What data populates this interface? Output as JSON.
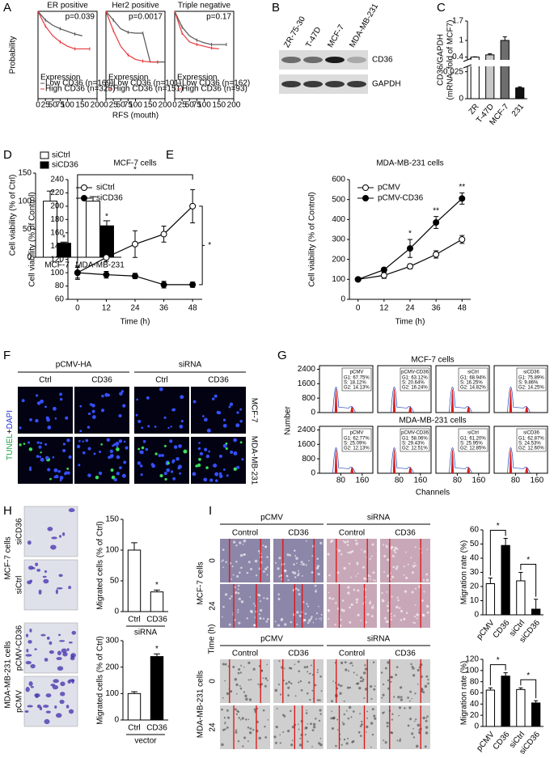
{
  "panel_labels": [
    "A",
    "B",
    "C",
    "D",
    "E",
    "F",
    "G",
    "H",
    "I"
  ],
  "chart_data": [
    {
      "type": "line",
      "title": "ER positive",
      "y_label": "Probability",
      "annotation": "p=0.039",
      "legend_title": "Expression",
      "x": [
        0,
        25,
        50,
        75,
        100,
        125,
        150,
        175,
        200
      ],
      "xlim": [
        0,
        200
      ],
      "xticks": [
        0,
        25,
        50,
        75,
        100,
        150,
        200
      ],
      "ylim": [
        0,
        1
      ],
      "series": [
        {
          "name": "Low CD36 (n=169)",
          "color": "#555555",
          "values": [
            1,
            0.9,
            0.84,
            0.8,
            0.77,
            0.74,
            0.72,
            null,
            null
          ]
        },
        {
          "name": "High CD36 (n=325)",
          "color": "#e8383d",
          "values": [
            1,
            0.83,
            0.72,
            0.65,
            0.6,
            0.57,
            0.57,
            0.57,
            null
          ]
        }
      ]
    },
    {
      "type": "line",
      "title": "Her2 positive",
      "x_label": "RFS (mouth)",
      "annotation": "p=0.0017",
      "legend_title": "Expression",
      "x": [
        0,
        25,
        50,
        75,
        100,
        125,
        150,
        175,
        200
      ],
      "xlim": [
        0,
        200
      ],
      "xticks": [
        0,
        25,
        50,
        75,
        100,
        150,
        200
      ],
      "ylim": [
        0,
        1
      ],
      "series": [
        {
          "name": "Low CD36 (n=101)",
          "color": "#555555",
          "values": [
            1,
            0.9,
            0.8,
            0.76,
            0.75,
            0.75,
            0.42,
            0.42,
            0.42
          ]
        },
        {
          "name": "High CD36 (n=151)",
          "color": "#e8383d",
          "values": [
            1,
            0.78,
            0.6,
            0.5,
            0.45,
            0.43,
            0.42,
            0.42,
            null
          ]
        }
      ]
    },
    {
      "type": "line",
      "title": "Triple negative",
      "annotation": "p=0.17",
      "legend_title": "Expression",
      "x": [
        0,
        25,
        50,
        75,
        100,
        125,
        150,
        175,
        200
      ],
      "xlim": [
        0,
        200
      ],
      "xticks": [
        0,
        25,
        50,
        75,
        100,
        150,
        200
      ],
      "ylim": [
        0,
        1
      ],
      "series": [
        {
          "name": "Low CD36 (n=162)",
          "color": "#555555",
          "values": [
            1,
            0.82,
            0.72,
            0.67,
            0.64,
            0.62,
            0.62,
            0.62,
            null
          ]
        },
        {
          "name": "High CD36 (n=93)",
          "color": "#e8383d",
          "values": [
            1,
            0.75,
            0.65,
            0.62,
            0.6,
            0.58,
            0.57,
            null,
            null
          ]
        }
      ]
    },
    {
      "type": "bar",
      "y_label": [
        "CD36/GAPDH",
        "(mRNA, fold of MCF7)"
      ],
      "categories": [
        "ZR",
        "T-47D",
        "MCF-7",
        "231"
      ],
      "values": [
        0.4,
        0.48,
        1.0,
        0.01
      ],
      "errors": [
        0.01,
        0.04,
        0.13,
        0.001
      ],
      "colors": [
        "#ffffff",
        "#c8c8c8",
        "#6e6e6e",
        "#111111"
      ],
      "ylim": [
        0,
        1.7
      ],
      "yticks": [
        0,
        0.025,
        0.4,
        1,
        1.7
      ],
      "y_break": [
        0.03,
        0.3
      ]
    },
    {
      "type": "bar",
      "y_label": "Cell viability (% of Ctrl)",
      "categories": [
        "MCF-7",
        "MDA-MB-231"
      ],
      "series": [
        {
          "name": "siCtrl",
          "color": "#ffffff",
          "values": [
            100,
            100
          ],
          "errors": [
            18,
            8
          ]
        },
        {
          "name": "siCD36",
          "color": "#000000",
          "values": [
            25,
            56
          ],
          "errors": [
            2,
            9
          ],
          "significance": [
            "*",
            "*"
          ]
        }
      ],
      "ylim": [
        0,
        150
      ],
      "yticks": [
        0,
        50,
        100,
        150
      ]
    },
    {
      "type": "line",
      "title": "MCF-7 cells",
      "x_label": "Time (h)",
      "y_label": "Cell viability (% of Control)",
      "x": [
        0,
        12,
        24,
        36,
        48
      ],
      "xlim": [
        -4,
        52
      ],
      "xticks": [
        0,
        12,
        24,
        36,
        48
      ],
      "ylim": [
        60,
        240
      ],
      "yticks": [
        60,
        80,
        100,
        120,
        140,
        160,
        180,
        200,
        220,
        240
      ],
      "series": [
        {
          "name": "siCtrl",
          "color": "#000000",
          "marker_fill": "#ffffff",
          "values": [
            100,
            123,
            143,
            158,
            200
          ],
          "errors": [
            8,
            6,
            20,
            12,
            25
          ]
        },
        {
          "name": "siCD36",
          "color": "#000000",
          "marker_fill": "#000000",
          "values": [
            100,
            97,
            95,
            82,
            82
          ],
          "errors": [
            10,
            5,
            4,
            5,
            4
          ]
        }
      ],
      "brackets": [
        "*",
        "*"
      ]
    },
    {
      "type": "line",
      "title": "MDA-MB-231 cells",
      "x_label": "Time (h)",
      "y_label": "Cell viability (% of Control)",
      "x": [
        0,
        12,
        24,
        36,
        48
      ],
      "xlim": [
        -4,
        52
      ],
      "xticks": [
        0,
        12,
        24,
        36,
        48
      ],
      "ylim": [
        0,
        600
      ],
      "yticks": [
        0,
        100,
        200,
        300,
        400,
        500,
        600
      ],
      "series": [
        {
          "name": "pCMV",
          "color": "#000000",
          "marker_fill": "#ffffff",
          "values": [
            100,
            120,
            165,
            225,
            300
          ],
          "errors": [
            5,
            15,
            12,
            18,
            20
          ]
        },
        {
          "name": "pCMV-CD36",
          "color": "#000000",
          "marker_fill": "#000000",
          "values": [
            100,
            148,
            255,
            385,
            505
          ],
          "errors": [
            5,
            10,
            45,
            30,
            28
          ],
          "significance": [
            null,
            null,
            "*",
            "**",
            "**"
          ]
        }
      ]
    },
    {
      "type": "bar",
      "y_label": "Migrated cells (% of Ctrl)",
      "x_label": "siRNA",
      "categories": [
        "Ctrl",
        "CD36"
      ],
      "values": [
        100,
        32
      ],
      "errors": [
        12,
        3
      ],
      "colors": [
        "#ffffff",
        "#ffffff"
      ],
      "significance": [
        null,
        "*"
      ],
      "ylim": [
        0,
        150
      ],
      "yticks": [
        0,
        50,
        100,
        150
      ]
    },
    {
      "type": "bar",
      "y_label": "Migrated cells (% of Ctrl)",
      "x_label": "vector",
      "categories": [
        "Ctrl",
        "CD36"
      ],
      "values": [
        100,
        240
      ],
      "errors": [
        7,
        10
      ],
      "colors": [
        "#ffffff",
        "#000000"
      ],
      "significance": [
        null,
        "*"
      ],
      "ylim": [
        0,
        300
      ],
      "yticks": [
        0,
        100,
        200,
        300
      ]
    },
    {
      "type": "bar",
      "y_label": "Migration rate (%)",
      "categories": [
        "pCMV",
        "CD36",
        "siCtrl",
        "siCD36"
      ],
      "values": [
        22,
        49,
        24,
        4
      ],
      "errors": [
        4,
        5,
        6,
        7
      ],
      "colors": [
        "#ffffff",
        "#000000",
        "#ffffff",
        "#000000"
      ],
      "comparisons": [
        "*",
        "*"
      ],
      "ylim": [
        0,
        60
      ],
      "yticks": [
        0,
        10,
        20,
        30,
        40,
        50,
        60
      ]
    },
    {
      "type": "bar",
      "y_label": "Migration rate (%)",
      "categories": [
        "pCMV",
        "CD36",
        "siCtrl",
        "siCD36"
      ],
      "values": [
        65,
        90,
        66,
        42
      ],
      "errors": [
        4,
        6,
        3,
        4
      ],
      "colors": [
        "#ffffff",
        "#000000",
        "#ffffff",
        "#000000"
      ],
      "comparisons": [
        "*",
        "*"
      ],
      "ylim": [
        0,
        120
      ],
      "yticks": [
        0,
        20,
        40,
        60,
        80,
        100,
        120
      ]
    }
  ],
  "western": {
    "lanes": [
      "ZR-75-30",
      "T-47D",
      "MCF-7",
      "MDA-MB-231"
    ],
    "bands": [
      "CD36",
      "GAPDH"
    ]
  },
  "tunel": {
    "stain": [
      "TUNEL",
      "+",
      "DAPI"
    ],
    "groups": [
      "pCMV-HA",
      "siRNA"
    ],
    "columns": [
      "Ctrl",
      "CD36",
      "Ctrl",
      "CD36"
    ],
    "rows": [
      "MCF-7",
      "MDA-MB-231"
    ]
  },
  "cell_cycle": {
    "y_label": "Number",
    "x_label": "Channels",
    "ylim": [
      0,
      2600
    ],
    "yticks": [
      0,
      800,
      1600,
      2400
    ],
    "xlim": [
      0,
      200
    ],
    "xticks": [
      80,
      160
    ],
    "rows": [
      {
        "title": "MCF-7 cells",
        "panels": [
          {
            "name": "pCMV",
            "lines": [
              "G1: 67.75%",
              "S: 18.12%",
              "G2: 14.13%"
            ]
          },
          {
            "name": "pCMV-CD36",
            "lines": [
              "G1: 63.12%",
              "S: 20.64%",
              "G2: 16.24%"
            ]
          },
          {
            "name": "siCtrl",
            "lines": [
              "G1: 68.94%",
              "S: 16.25%",
              "G2: 14.82%"
            ]
          },
          {
            "name": "siCD36",
            "lines": [
              "G1: 75.89%",
              "S: 9.86%",
              "G2: 14.25%"
            ]
          }
        ]
      },
      {
        "title": "MDA-MB-231 cells",
        "panels": [
          {
            "name": "pCMV",
            "lines": [
              "G1: 62.77%",
              "S: 25.09%",
              "G2: 12.13%"
            ]
          },
          {
            "name": "pCMV-CD36",
            "lines": [
              "G1: 58.06%",
              "S: 29.43%",
              "G2: 12.51%"
            ]
          },
          {
            "name": "siCtrl",
            "lines": [
              "G1: 61.20%",
              "S: 25.95%",
              "G2: 12.85%"
            ]
          },
          {
            "name": "siCD36",
            "lines": [
              "G1: 62.87%",
              "S: 24.53%",
              "G2: 12.60%"
            ]
          }
        ]
      }
    ]
  },
  "transwell": {
    "rows": [
      {
        "group": "MCF-7 cells",
        "images": [
          "siCD36",
          "siCtrl"
        ]
      },
      {
        "group": "MDA-MB-231 cells",
        "images": [
          "pCMV-CD36",
          "pCMV"
        ]
      }
    ]
  },
  "wound": {
    "time_label": "Time (h)",
    "rows": [
      {
        "group": "MCF-7 cells",
        "headers": [
          "pCMV",
          "siRNA"
        ],
        "columns": [
          "Control",
          "CD36",
          "Control",
          "CD36"
        ],
        "times": [
          "0",
          "24"
        ]
      },
      {
        "group": "MDA-MB-231 cells",
        "headers": [
          "pCMV",
          "siRNA"
        ],
        "columns": [
          "Control",
          "CD36",
          "Control",
          "CD36"
        ],
        "times": [
          "0",
          "24"
        ]
      }
    ]
  }
}
